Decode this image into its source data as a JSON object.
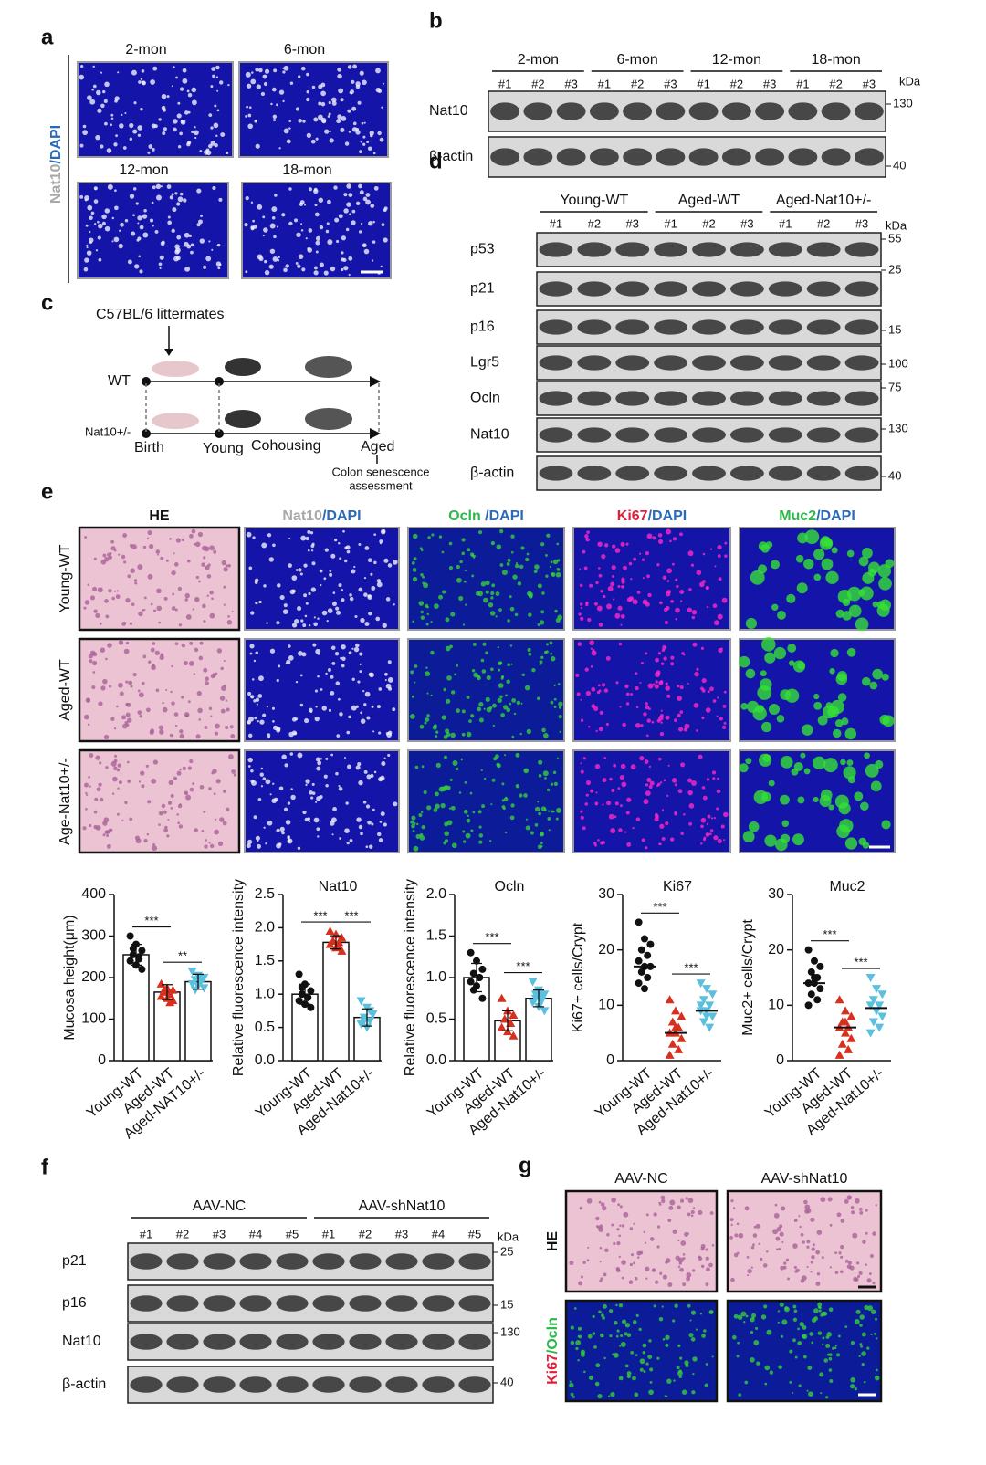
{
  "panel_a": {
    "label": "a",
    "stain": [
      "Nat10",
      "/DAPI"
    ],
    "images": [
      "2-mon",
      "6-mon",
      "12-mon",
      "18-mon"
    ]
  },
  "panel_b": {
    "label": "b",
    "groups": [
      "2-mon",
      "6-mon",
      "12-mon",
      "18-mon"
    ],
    "lanes": [
      "#1",
      "#2",
      "#3"
    ],
    "rows": [
      "Nat10",
      "β-actin"
    ],
    "unit": "kDa",
    "markers": [
      130,
      40
    ]
  },
  "panel_c": {
    "label": "c",
    "source": "C57BL/6 littermates",
    "groups": [
      "WT",
      "Nat10+/-"
    ],
    "stages": [
      "Birth",
      "Young",
      "Cohousing",
      "Aged"
    ],
    "outcome": [
      "Colon senescence",
      "assessment"
    ]
  },
  "panel_d": {
    "label": "d",
    "groups": [
      "Young-WT",
      "Aged-WT",
      "Aged-Nat10+/-"
    ],
    "lanes": [
      "#1",
      "#2",
      "#3"
    ],
    "rows": [
      "p53",
      "p21",
      "p16",
      "Lgr5",
      "Ocln",
      "Nat10",
      "β-actin"
    ],
    "unit": "kDa",
    "markers": [
      55,
      25,
      15,
      100,
      75,
      130,
      40
    ]
  },
  "panel_e": {
    "label": "e",
    "columns": [
      [
        "HE"
      ],
      [
        "Nat10",
        "/DAPI"
      ],
      [
        "Ocln",
        " /DAPI"
      ],
      [
        "Ki67",
        "/DAPI"
      ],
      [
        "Muc2",
        "/DAPI"
      ]
    ],
    "rows": [
      "Young-WT",
      "Aged-WT",
      "Age-Nat10+/-"
    ]
  },
  "chart_data": [
    {
      "type": "bar",
      "ylabel": "Mucosa height(μm)",
      "categories": [
        "Young-WT",
        "Aged-WT",
        "Aged-NAT10+/-"
      ],
      "ylim": [
        0,
        400
      ],
      "yticks": [
        0,
        100,
        200,
        300,
        400
      ],
      "colors": [
        "#111111",
        "#d7301f",
        "#5bc0de"
      ],
      "values": [
        255,
        165,
        190
      ],
      "errors": [
        25,
        18,
        18
      ],
      "points": [
        [
          300,
          280,
          265,
          255,
          250,
          240,
          230,
          220,
          270,
          245
        ],
        [
          185,
          175,
          170,
          165,
          160,
          155,
          150,
          145,
          170,
          140
        ],
        [
          215,
          205,
          200,
          195,
          190,
          185,
          180,
          175,
          170,
          200
        ]
      ],
      "significance": [
        {
          "text": "***",
          "pair": [
            0,
            1
          ]
        },
        {
          "text": "**",
          "pair": [
            1,
            2
          ]
        }
      ]
    },
    {
      "type": "bar",
      "title": "Nat10",
      "ylabel": "Relative fluorescence intensity",
      "categories": [
        "Young-WT",
        "Aged-WT",
        "Aged-Nat10+/-"
      ],
      "ylim": [
        0,
        2.5
      ],
      "yticks": [
        {
          "value": 0,
          "label": "0.0"
        },
        0.5,
        {
          "value": 1,
          "label": "1.0"
        },
        1.5,
        {
          "value": 2,
          "label": "2.0"
        },
        2.5
      ],
      "colors": [
        "#111111",
        "#d7301f",
        "#5bc0de"
      ],
      "values": [
        1.0,
        1.78,
        0.65
      ],
      "errors": [
        0.15,
        0.1,
        0.13
      ],
      "points": [
        [
          1.3,
          1.15,
          1.05,
          1.0,
          0.95,
          0.9,
          0.85,
          0.8,
          1.1,
          0.95
        ],
        [
          1.95,
          1.9,
          1.85,
          1.8,
          1.78,
          1.75,
          1.7,
          1.65,
          1.8,
          1.72
        ],
        [
          0.9,
          0.8,
          0.7,
          0.65,
          0.6,
          0.55,
          0.5,
          0.7,
          0.6,
          0.75
        ]
      ],
      "significance": [
        {
          "text": "***",
          "pair": [
            0,
            1
          ]
        },
        {
          "text": "***",
          "pair": [
            1,
            2
          ]
        }
      ]
    },
    {
      "type": "bar",
      "title": "Ocln",
      "ylabel": "Relative fluorescence intensity",
      "categories": [
        "Young-WT",
        "Aged-WT",
        "Aged-Nat10+/-"
      ],
      "ylim": [
        0,
        2.0
      ],
      "yticks": [
        {
          "value": 0,
          "label": "0.0"
        },
        0.5,
        {
          "value": 1,
          "label": "1.0"
        },
        1.5,
        {
          "value": 2,
          "label": "2.0"
        }
      ],
      "colors": [
        "#111111",
        "#d7301f",
        "#5bc0de"
      ],
      "values": [
        1.0,
        0.48,
        0.75
      ],
      "errors": [
        0.17,
        0.12,
        0.1
      ],
      "points": [
        [
          1.3,
          1.2,
          1.1,
          1.05,
          1.0,
          0.95,
          0.9,
          0.75,
          0.85,
          1.0
        ],
        [
          0.75,
          0.6,
          0.55,
          0.5,
          0.45,
          0.4,
          0.35,
          0.3,
          0.5,
          0.45
        ],
        [
          0.95,
          0.85,
          0.8,
          0.75,
          0.72,
          0.7,
          0.65,
          0.6,
          0.8,
          0.78
        ]
      ],
      "significance": [
        {
          "text": "***",
          "pair": [
            0,
            1
          ]
        },
        {
          "text": "***",
          "pair": [
            1,
            2
          ]
        }
      ]
    },
    {
      "type": "dot",
      "title": "Ki67",
      "ylabel": "Ki67+ cells/Crypt",
      "categories": [
        "Young-WT",
        "Aged-WT",
        "Aged-Nat10+/-"
      ],
      "ylim": [
        0,
        30
      ],
      "yticks": [
        0,
        10,
        20,
        30
      ],
      "colors": [
        "#111111",
        "#d7301f",
        "#5bc0de"
      ],
      "values": [
        17,
        5,
        9
      ],
      "points": [
        [
          25,
          22,
          21,
          20,
          19,
          18,
          17,
          17,
          16,
          15,
          14,
          13
        ],
        [
          11,
          9,
          8,
          7,
          6,
          5,
          5,
          4,
          3,
          2,
          1,
          6
        ],
        [
          14,
          13,
          12,
          11,
          10,
          9,
          9,
          8,
          7,
          6,
          10,
          8
        ]
      ],
      "significance": [
        {
          "text": "***",
          "pair": [
            0,
            1
          ]
        },
        {
          "text": "***",
          "pair": [
            1,
            2
          ]
        }
      ]
    },
    {
      "type": "dot",
      "title": "Muc2",
      "ylabel": "Muc2+ cells/Crypt",
      "categories": [
        "Young-WT",
        "Aged-WT",
        "Aged-Nat10+/-"
      ],
      "ylim": [
        0,
        30
      ],
      "yticks": [
        0,
        10,
        20,
        30
      ],
      "colors": [
        "#111111",
        "#d7301f",
        "#5bc0de"
      ],
      "values": [
        14,
        6,
        9.5
      ],
      "points": [
        [
          20,
          18,
          17,
          16,
          15,
          14,
          14,
          13,
          12,
          11,
          10,
          15
        ],
        [
          11,
          9,
          8,
          7,
          6,
          6,
          5,
          4,
          3,
          2,
          1,
          7
        ],
        [
          15,
          13,
          12,
          11,
          10,
          10,
          9,
          8,
          7,
          6,
          5,
          9
        ]
      ],
      "significance": [
        {
          "text": "***",
          "pair": [
            0,
            1
          ]
        },
        {
          "text": "***",
          "pair": [
            1,
            2
          ]
        }
      ]
    }
  ],
  "panel_f": {
    "label": "f",
    "groups": [
      "AAV-NC",
      "AAV-shNat10"
    ],
    "lanes": [
      "#1",
      "#2",
      "#3",
      "#4",
      "#5"
    ],
    "rows": [
      "p21",
      "p16",
      "Nat10",
      "β-actin"
    ],
    "unit": "kDa",
    "markers": [
      25,
      15,
      130,
      40
    ]
  },
  "panel_g": {
    "label": "g",
    "columns": [
      "AAV-NC",
      "AAV-shNat10"
    ],
    "rows": [
      [
        "HE"
      ],
      [
        "Ki67",
        "/Ocln"
      ]
    ]
  }
}
